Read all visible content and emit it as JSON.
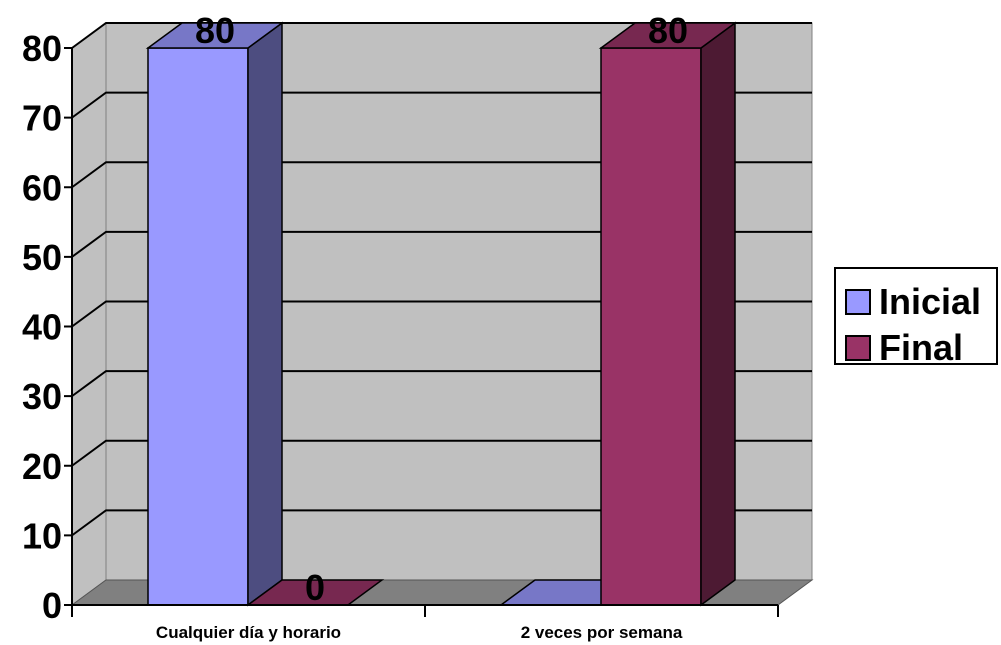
{
  "chart_data": {
    "type": "bar",
    "categories": [
      "Cualquier día y horario",
      "2 veces por semana"
    ],
    "series": [
      {
        "name": "Inicial",
        "values": [
          80,
          0
        ],
        "color": "#9999FF"
      },
      {
        "name": "Final",
        "values": [
          0,
          80
        ],
        "color": "#993366"
      }
    ],
    "ylim": [
      0,
      80
    ],
    "yticks": [
      "0",
      "10",
      "20",
      "30",
      "40",
      "50",
      "60",
      "70",
      "80"
    ],
    "data_labels": [
      "80",
      "0",
      "80"
    ],
    "grid": true,
    "legend": "right",
    "wall_color": "#C0C0C0",
    "floor_color": "#808080"
  }
}
